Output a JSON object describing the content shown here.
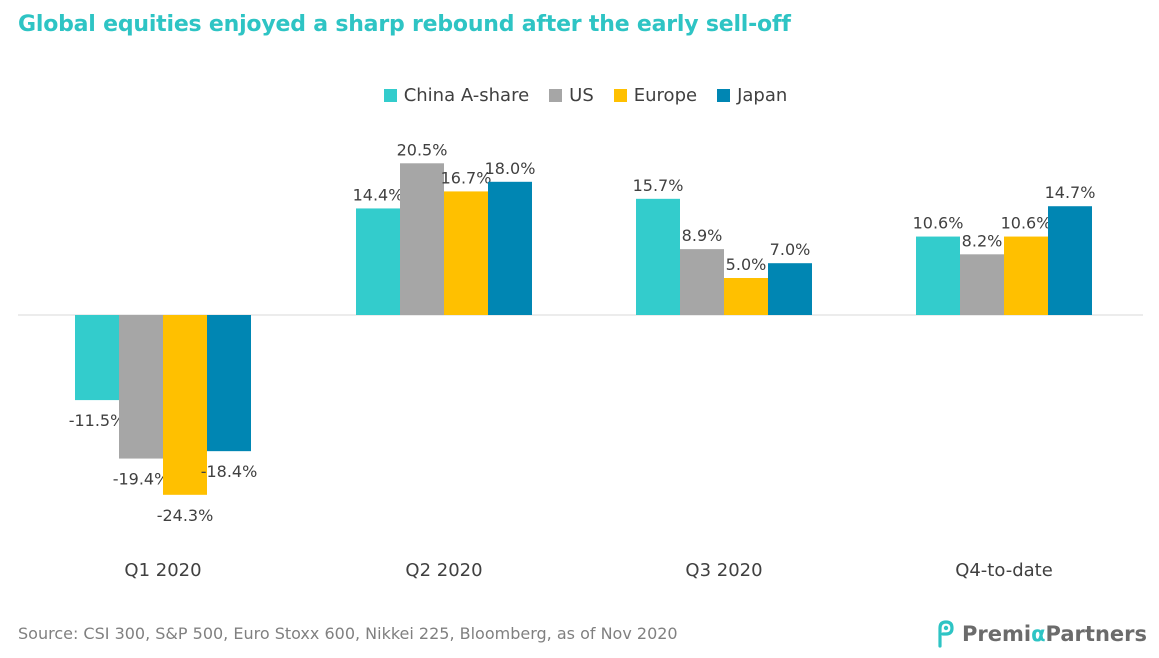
{
  "title": "Global equities enjoyed a sharp rebound after the early sell-off",
  "source": "Source: CSI 300, S&P 500, Euro Stoxx 600, Nikkei 225, Bloomberg, as of Nov 2020",
  "logo": {
    "name_part1": "Premi",
    "name_alpha": "α",
    "name_part2": "Partners",
    "icon": "premia-partners-logo-icon"
  },
  "chart_data": {
    "type": "bar",
    "categories": [
      "Q1 2020",
      "Q2 2020",
      "Q3 2020",
      "Q4-to-date"
    ],
    "series": [
      {
        "name": "China A-share",
        "color": "#33cccc",
        "values": [
          -11.5,
          14.4,
          15.7,
          10.6
        ],
        "labels": [
          "-11.5%",
          "14.4%",
          "15.7%",
          "10.6%"
        ]
      },
      {
        "name": "US",
        "color": "#a6a6a6",
        "values": [
          -19.4,
          20.5,
          8.9,
          8.2
        ],
        "labels": [
          "-19.4%",
          "20.5%",
          "8.9%",
          "8.2%"
        ]
      },
      {
        "name": "Europe",
        "color": "#ffc000",
        "values": [
          -24.3,
          16.7,
          5.0,
          10.6
        ],
        "labels": [
          "-24.3%",
          "16.7%",
          "5.0%",
          "10.6%"
        ]
      },
      {
        "name": "Japan",
        "color": "#0086b3",
        "values": [
          -18.4,
          18.0,
          7.0,
          14.7
        ],
        "labels": [
          "-18.4%",
          "18.0%",
          "7.0%",
          "14.7%"
        ]
      }
    ],
    "ylim": [
      -25,
      21
    ],
    "legend_position": "top-center",
    "grid": false
  }
}
